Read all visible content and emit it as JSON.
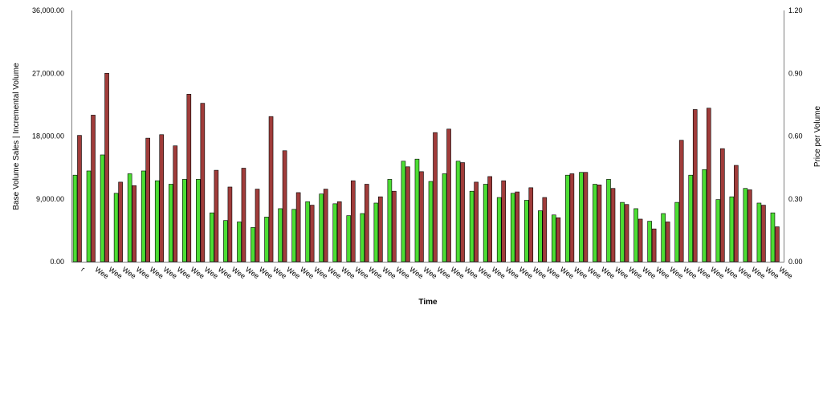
{
  "chart_data": {
    "type": "bar",
    "xlabel": "Time",
    "ylabel_left": "Base Volume Sales | Incremental Volume",
    "ylabel_right": "Price per Volume",
    "ylim_left": [
      0,
      36000
    ],
    "ylim_right": [
      0,
      1.2
    ],
    "yticks_left": [
      "0.00",
      "9,000.00",
      "18,000.00",
      "27,000.00",
      "36,000.00"
    ],
    "yticks_right": [
      "0.00",
      "0.30",
      "0.60",
      "0.90",
      "1.20"
    ],
    "category_label": "Wee",
    "first_category_label": "r",
    "category_count": 52,
    "grid": false,
    "legend": "none",
    "series": [
      {
        "color": "#4cdd33",
        "values": [
          12400,
          13000,
          15300,
          9800,
          12600,
          13000,
          11600,
          11100,
          11800,
          11800,
          7000,
          5900,
          5700,
          4900,
          6400,
          7600,
          7500,
          8600,
          9700,
          8300,
          6600,
          6900,
          8400,
          11800,
          14400,
          14700,
          11500,
          12600,
          14400,
          10100,
          11100,
          9200,
          9800,
          8800,
          7300,
          6700,
          12400,
          12800,
          11100,
          11800,
          8500,
          7600,
          5800,
          6900,
          8500,
          12400,
          13200,
          8900,
          9300,
          10500,
          8400,
          7000
        ]
      },
      {
        "color": "#a03c3a",
        "values": [
          18100,
          21000,
          27000,
          11400,
          10900,
          17700,
          18200,
          16600,
          24000,
          22700,
          13100,
          10700,
          13400,
          10400,
          20800,
          15900,
          9900,
          8100,
          10400,
          8600,
          11600,
          11100,
          9300,
          10100,
          13600,
          12900,
          18500,
          19000,
          14200,
          11400,
          12200,
          11600,
          10000,
          10600,
          9200,
          6300,
          12600,
          12800,
          11000,
          10500,
          8200,
          6100,
          4700,
          5700,
          17400,
          21800,
          22000,
          16200,
          13800,
          10300,
          8100,
          5000
        ]
      }
    ]
  }
}
